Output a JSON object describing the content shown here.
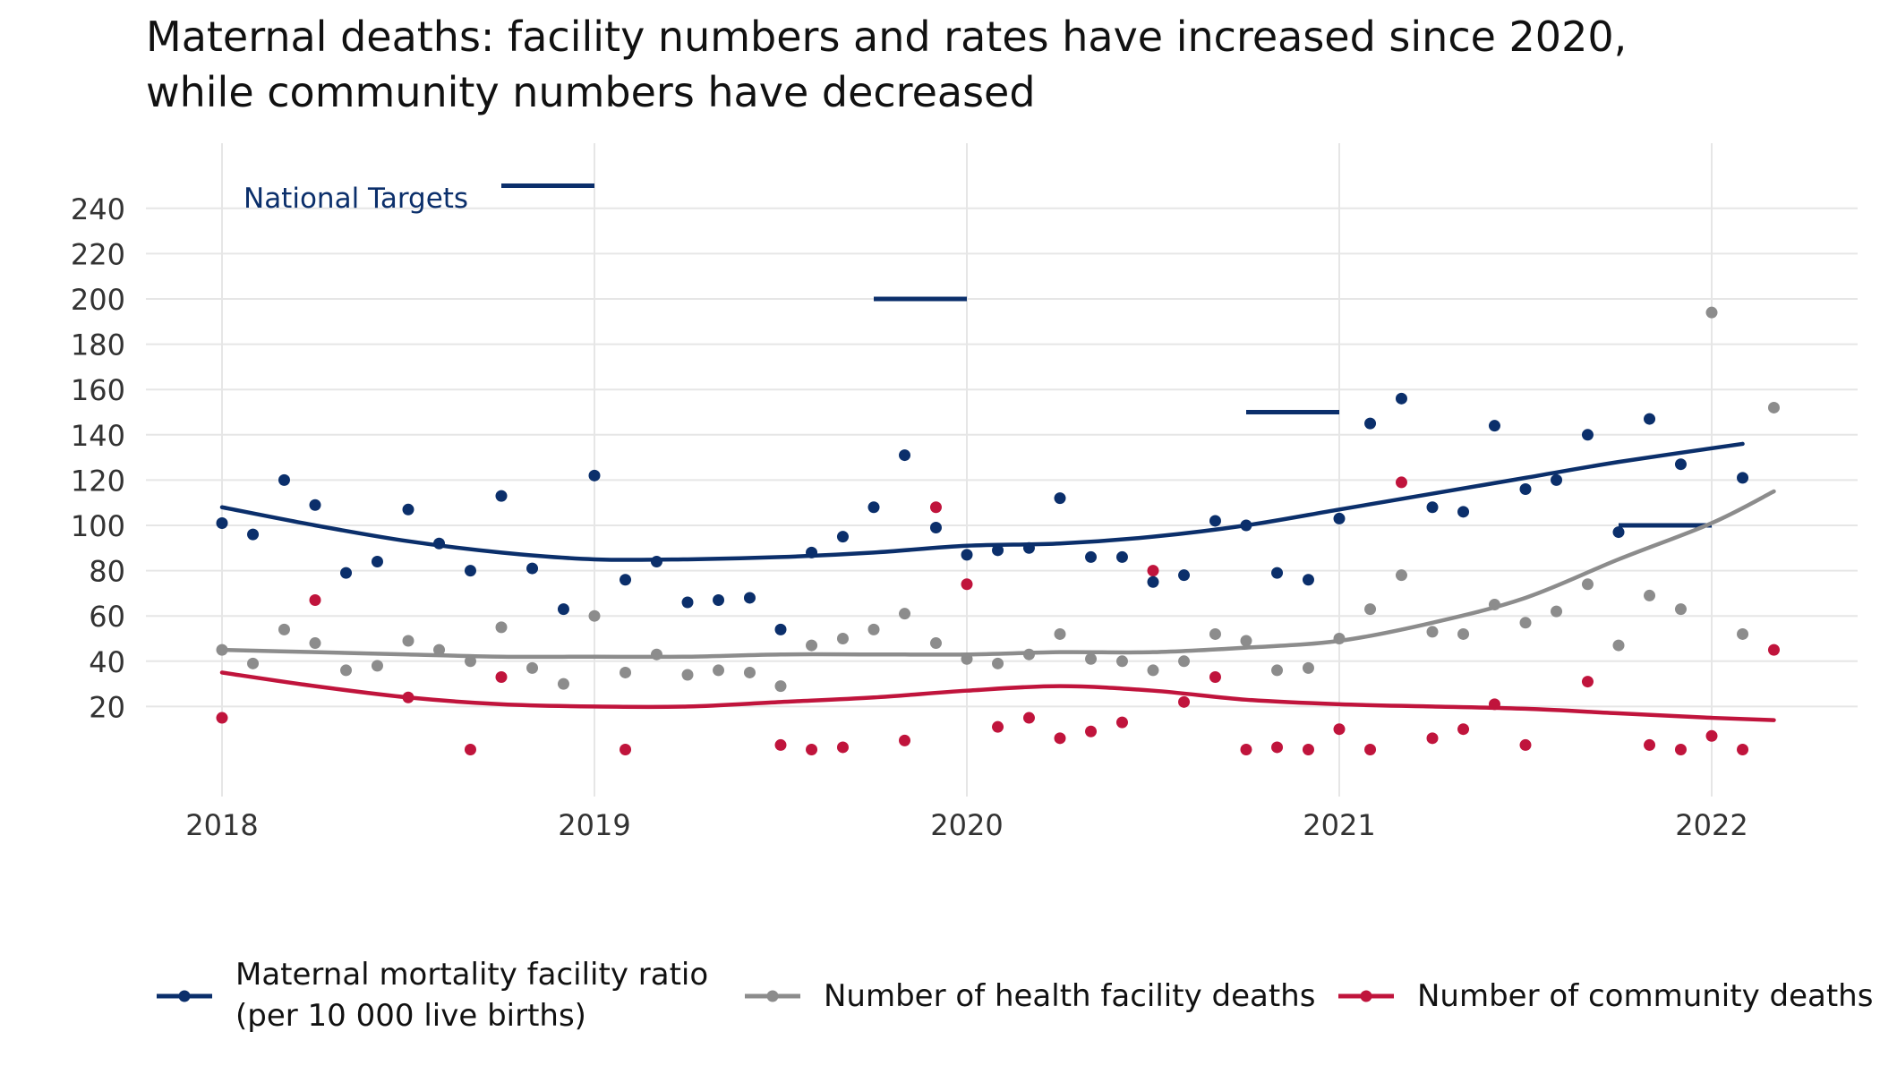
{
  "chart_data": {
    "type": "scatter",
    "title_line1": "Maternal deaths: facility numbers and rates have increased since 2020,",
    "title_line2": "while community numbers have decreased",
    "x_ticks": [
      "2018",
      "2019",
      "2020",
      "2021",
      "2022"
    ],
    "y_ticks": [
      20,
      40,
      60,
      80,
      100,
      120,
      140,
      160,
      180,
      200,
      220,
      240
    ],
    "xlim": [
      2017.8,
      2022.35
    ],
    "ylim": [
      0,
      250
    ],
    "grid": true,
    "legend_position": "bottom",
    "targets_label": "National Targets",
    "targets": [
      {
        "x_start": 2018.75,
        "x_end": 2019.0,
        "value": 250
      },
      {
        "x_start": 2019.75,
        "x_end": 2020.0,
        "value": 200
      },
      {
        "x_start": 2020.75,
        "x_end": 2021.0,
        "value": 150
      },
      {
        "x_start": 2021.75,
        "x_end": 2022.0,
        "value": 100
      }
    ],
    "series": [
      {
        "name": "Maternal mortality facility ratio",
        "name_line2": "(per 10 000 live births)",
        "color": "#0b2f6b",
        "points": [
          [
            2018.0,
            101
          ],
          [
            2018.083,
            96
          ],
          [
            2018.167,
            120
          ],
          [
            2018.25,
            109
          ],
          [
            2018.333,
            79
          ],
          [
            2018.417,
            84
          ],
          [
            2018.5,
            107
          ],
          [
            2018.583,
            92
          ],
          [
            2018.667,
            80
          ],
          [
            2018.75,
            113
          ],
          [
            2018.833,
            81
          ],
          [
            2018.917,
            63
          ],
          [
            2019.0,
            122
          ],
          [
            2019.083,
            76
          ],
          [
            2019.167,
            84
          ],
          [
            2019.25,
            66
          ],
          [
            2019.333,
            67
          ],
          [
            2019.417,
            68
          ],
          [
            2019.5,
            54
          ],
          [
            2019.583,
            88
          ],
          [
            2019.667,
            95
          ],
          [
            2019.75,
            108
          ],
          [
            2019.833,
            131
          ],
          [
            2019.917,
            99
          ],
          [
            2020.0,
            87
          ],
          [
            2020.083,
            89
          ],
          [
            2020.167,
            90
          ],
          [
            2020.25,
            112
          ],
          [
            2020.333,
            86
          ],
          [
            2020.417,
            86
          ],
          [
            2020.5,
            75
          ],
          [
            2020.583,
            78
          ],
          [
            2020.667,
            102
          ],
          [
            2020.75,
            100
          ],
          [
            2020.833,
            79
          ],
          [
            2020.917,
            76
          ],
          [
            2021.0,
            103
          ],
          [
            2021.083,
            145
          ],
          [
            2021.167,
            156
          ],
          [
            2021.25,
            108
          ],
          [
            2021.333,
            106
          ],
          [
            2021.417,
            144
          ],
          [
            2021.5,
            116
          ],
          [
            2021.583,
            120
          ],
          [
            2021.667,
            140
          ],
          [
            2021.75,
            97
          ],
          [
            2021.833,
            147
          ],
          [
            2021.917,
            127
          ],
          [
            2022.083,
            121
          ]
        ],
        "trend": [
          [
            2018.0,
            108
          ],
          [
            2018.25,
            100
          ],
          [
            2018.5,
            93
          ],
          [
            2018.75,
            88
          ],
          [
            2019.0,
            85
          ],
          [
            2019.25,
            85
          ],
          [
            2019.5,
            86
          ],
          [
            2019.75,
            88
          ],
          [
            2020.0,
            91
          ],
          [
            2020.25,
            92
          ],
          [
            2020.5,
            95
          ],
          [
            2020.75,
            100
          ],
          [
            2021.0,
            107
          ],
          [
            2021.25,
            114
          ],
          [
            2021.5,
            121
          ],
          [
            2021.75,
            128
          ],
          [
            2022.083,
            136
          ]
        ]
      },
      {
        "name": "Number of health facility deaths",
        "color": "#8c8c8c",
        "points": [
          [
            2018.0,
            45
          ],
          [
            2018.083,
            39
          ],
          [
            2018.167,
            54
          ],
          [
            2018.25,
            48
          ],
          [
            2018.333,
            36
          ],
          [
            2018.417,
            38
          ],
          [
            2018.5,
            49
          ],
          [
            2018.583,
            45
          ],
          [
            2018.667,
            40
          ],
          [
            2018.75,
            55
          ],
          [
            2018.833,
            37
          ],
          [
            2018.917,
            30
          ],
          [
            2019.0,
            60
          ],
          [
            2019.083,
            35
          ],
          [
            2019.167,
            43
          ],
          [
            2019.25,
            34
          ],
          [
            2019.333,
            36
          ],
          [
            2019.417,
            35
          ],
          [
            2019.5,
            29
          ],
          [
            2019.583,
            47
          ],
          [
            2019.667,
            50
          ],
          [
            2019.75,
            54
          ],
          [
            2019.833,
            61
          ],
          [
            2019.917,
            48
          ],
          [
            2020.0,
            41
          ],
          [
            2020.083,
            39
          ],
          [
            2020.167,
            43
          ],
          [
            2020.25,
            52
          ],
          [
            2020.333,
            41
          ],
          [
            2020.417,
            40
          ],
          [
            2020.5,
            36
          ],
          [
            2020.583,
            40
          ],
          [
            2020.667,
            52
          ],
          [
            2020.75,
            49
          ],
          [
            2020.833,
            36
          ],
          [
            2020.917,
            37
          ],
          [
            2021.0,
            50
          ],
          [
            2021.083,
            63
          ],
          [
            2021.167,
            78
          ],
          [
            2021.25,
            53
          ],
          [
            2021.333,
            52
          ],
          [
            2021.417,
            65
          ],
          [
            2021.5,
            57
          ],
          [
            2021.583,
            62
          ],
          [
            2021.667,
            74
          ],
          [
            2021.75,
            47
          ],
          [
            2021.833,
            69
          ],
          [
            2021.917,
            63
          ],
          [
            2022.0,
            194
          ],
          [
            2022.083,
            52
          ],
          [
            2022.167,
            152
          ]
        ],
        "trend": [
          [
            2018.0,
            45
          ],
          [
            2018.25,
            44
          ],
          [
            2018.5,
            43
          ],
          [
            2018.75,
            42
          ],
          [
            2019.0,
            42
          ],
          [
            2019.25,
            42
          ],
          [
            2019.5,
            43
          ],
          [
            2019.75,
            43
          ],
          [
            2020.0,
            43
          ],
          [
            2020.25,
            44
          ],
          [
            2020.5,
            44
          ],
          [
            2020.75,
            46
          ],
          [
            2021.0,
            49
          ],
          [
            2021.25,
            57
          ],
          [
            2021.5,
            68
          ],
          [
            2021.75,
            85
          ],
          [
            2022.0,
            101
          ],
          [
            2022.167,
            115
          ]
        ]
      },
      {
        "name": "Number of community deaths",
        "color": "#c0143c",
        "points": [
          [
            2018.0,
            15
          ],
          [
            2018.25,
            67
          ],
          [
            2018.5,
            24
          ],
          [
            2018.667,
            1
          ],
          [
            2018.75,
            33
          ],
          [
            2019.083,
            1
          ],
          [
            2019.5,
            3
          ],
          [
            2019.583,
            1
          ],
          [
            2019.667,
            2
          ],
          [
            2019.833,
            5
          ],
          [
            2019.917,
            108
          ],
          [
            2020.0,
            74
          ],
          [
            2020.083,
            11
          ],
          [
            2020.167,
            15
          ],
          [
            2020.25,
            6
          ],
          [
            2020.333,
            9
          ],
          [
            2020.417,
            13
          ],
          [
            2020.5,
            80
          ],
          [
            2020.583,
            22
          ],
          [
            2020.667,
            33
          ],
          [
            2020.75,
            1
          ],
          [
            2020.833,
            2
          ],
          [
            2020.917,
            1
          ],
          [
            2021.0,
            10
          ],
          [
            2021.083,
            1
          ],
          [
            2021.167,
            119
          ],
          [
            2021.25,
            6
          ],
          [
            2021.333,
            10
          ],
          [
            2021.417,
            21
          ],
          [
            2021.5,
            3
          ],
          [
            2021.667,
            31
          ],
          [
            2021.833,
            3
          ],
          [
            2021.917,
            1
          ],
          [
            2022.0,
            7
          ],
          [
            2022.083,
            1
          ],
          [
            2022.167,
            45
          ]
        ],
        "trend": [
          [
            2018.0,
            35
          ],
          [
            2018.25,
            29
          ],
          [
            2018.5,
            24
          ],
          [
            2018.75,
            21
          ],
          [
            2019.0,
            20
          ],
          [
            2019.25,
            20
          ],
          [
            2019.5,
            22
          ],
          [
            2019.75,
            24
          ],
          [
            2020.0,
            27
          ],
          [
            2020.25,
            29
          ],
          [
            2020.5,
            27
          ],
          [
            2020.75,
            23
          ],
          [
            2021.0,
            21
          ],
          [
            2021.25,
            20
          ],
          [
            2021.5,
            19
          ],
          [
            2021.75,
            17
          ],
          [
            2022.0,
            15
          ],
          [
            2022.167,
            14
          ]
        ]
      }
    ]
  }
}
